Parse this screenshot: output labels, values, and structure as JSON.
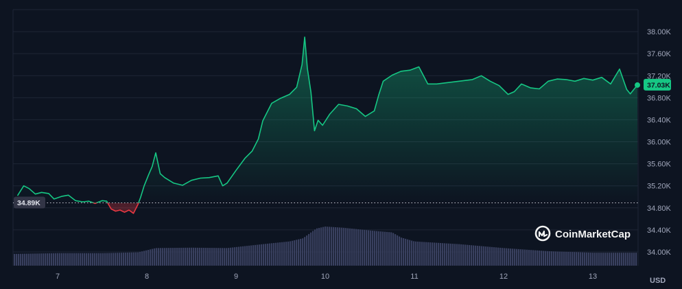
{
  "chart_data": {
    "type": "line",
    "x_tick_labels": [
      "7",
      "8",
      "9",
      "10",
      "11",
      "12",
      "13"
    ],
    "y_tick_labels": [
      "34.00K",
      "34.40K",
      "34.80K",
      "35.20K",
      "35.60K",
      "36.00K",
      "36.40K",
      "36.80K",
      "37.20K",
      "37.60K",
      "38.00K"
    ],
    "y_ticks": [
      34000,
      34400,
      34800,
      35200,
      35600,
      36000,
      36400,
      36800,
      37200,
      37600,
      38000
    ],
    "ylim": [
      33750,
      38400
    ],
    "xlim": [
      6.5,
      13.5
    ],
    "unit_label": "USD",
    "baseline": {
      "value": 34890,
      "label": "34.89K"
    },
    "current": {
      "value": 37030,
      "label": "37.03K"
    },
    "x": [
      6.55,
      6.62,
      6.68,
      6.75,
      6.82,
      6.9,
      6.96,
      7.05,
      7.12,
      7.2,
      7.28,
      7.35,
      7.42,
      7.5,
      7.55,
      7.6,
      7.65,
      7.7,
      7.75,
      7.8,
      7.85,
      7.9,
      7.93,
      7.97,
      8.02,
      8.06,
      8.1,
      8.15,
      8.2,
      8.3,
      8.4,
      8.5,
      8.6,
      8.7,
      8.8,
      8.85,
      8.9,
      9.0,
      9.1,
      9.18,
      9.25,
      9.3,
      9.4,
      9.5,
      9.6,
      9.68,
      9.74,
      9.77,
      9.8,
      9.84,
      9.88,
      9.92,
      9.97,
      10.05,
      10.15,
      10.25,
      10.35,
      10.45,
      10.55,
      10.6,
      10.65,
      10.75,
      10.85,
      10.95,
      11.05,
      11.15,
      11.25,
      11.35,
      11.5,
      11.65,
      11.75,
      11.85,
      11.95,
      12.05,
      12.12,
      12.2,
      12.3,
      12.4,
      12.5,
      12.6,
      12.7,
      12.8,
      12.9,
      13.0,
      13.1,
      13.2,
      13.3,
      13.38,
      13.42,
      13.5
    ],
    "series": [
      {
        "values": [
          35020,
          35200,
          35150,
          35050,
          35080,
          35060,
          34960,
          35010,
          35030,
          34930,
          34910,
          34920,
          34880,
          34930,
          34920,
          34780,
          34740,
          34760,
          34720,
          34760,
          34700,
          34860,
          34990,
          35200,
          35400,
          35550,
          35800,
          35420,
          35350,
          35250,
          35210,
          35300,
          35340,
          35350,
          35380,
          35200,
          35250,
          35480,
          35700,
          35830,
          36050,
          36380,
          36700,
          36790,
          36860,
          36990,
          37400,
          37900,
          37330,
          36900,
          36200,
          36390,
          36300,
          36500,
          36680,
          36650,
          36600,
          36460,
          36560,
          36850,
          37100,
          37210,
          37280,
          37300,
          37360,
          37050,
          37050,
          37070,
          37100,
          37130,
          37200,
          37100,
          37020,
          36860,
          36910,
          37050,
          36980,
          36960,
          37100,
          37140,
          37130,
          37100,
          37150,
          37120,
          37170,
          37050,
          37320,
          36950,
          36870,
          37030
        ]
      }
    ],
    "volume": {
      "x": [
        6.5,
        7.0,
        7.5,
        7.9,
        8.1,
        8.5,
        8.9,
        9.3,
        9.6,
        9.75,
        9.9,
        10.0,
        10.2,
        10.5,
        10.75,
        10.85,
        11.0,
        11.5,
        12.0,
        12.5,
        13.0,
        13.5
      ],
      "values": [
        0.3,
        0.32,
        0.32,
        0.34,
        0.45,
        0.46,
        0.45,
        0.55,
        0.62,
        0.7,
        0.95,
        1.0,
        0.97,
        0.9,
        0.85,
        0.72,
        0.62,
        0.55,
        0.45,
        0.37,
        0.33,
        0.33
      ]
    },
    "colors": {
      "up": "#16c784",
      "down": "#ea3943",
      "background": "#0d1421",
      "grid": "#1f2636",
      "volume": "#39405f",
      "badge_text": "#0d1421"
    },
    "watermark": {
      "text": "CoinMarketCap",
      "icon": "coinmarketcap-logo-icon"
    },
    "grid": true
  }
}
